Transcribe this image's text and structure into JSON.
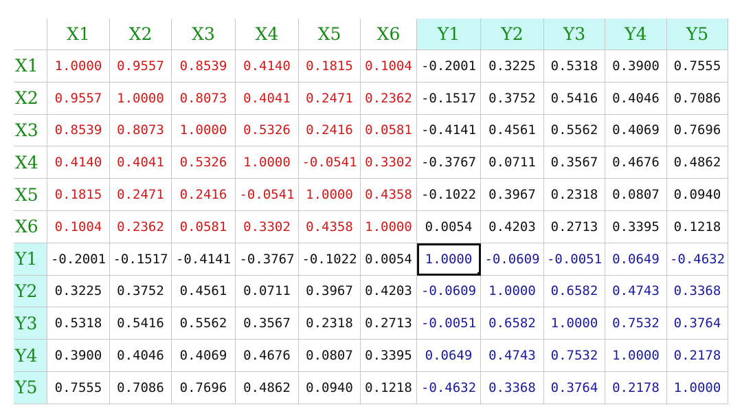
{
  "chart_data": {
    "type": "table",
    "columns": [
      "X1",
      "X2",
      "X3",
      "X4",
      "X5",
      "X6",
      "Y1",
      "Y2",
      "Y3",
      "Y4",
      "Y5"
    ],
    "rows": [
      "X1",
      "X2",
      "X3",
      "X4",
      "X5",
      "X6",
      "Y1",
      "Y2",
      "Y3",
      "Y4",
      "Y5"
    ],
    "values": [
      [
        "1.0000",
        "0.9557",
        "0.8539",
        "0.4140",
        "0.1815",
        "0.1004",
        "-0.2001",
        "0.3225",
        "0.5318",
        "0.3900",
        "0.7555"
      ],
      [
        "0.9557",
        "1.0000",
        "0.8073",
        "0.4041",
        "0.2471",
        "0.2362",
        "-0.1517",
        "0.3752",
        "0.5416",
        "0.4046",
        "0.7086"
      ],
      [
        "0.8539",
        "0.8073",
        "1.0000",
        "0.5326",
        "0.2416",
        "0.0581",
        "-0.4141",
        "0.4561",
        "0.5562",
        "0.4069",
        "0.7696"
      ],
      [
        "0.4140",
        "0.4041",
        "0.5326",
        "1.0000",
        "-0.0541",
        "0.3302",
        "-0.3767",
        "0.0711",
        "0.3567",
        "0.4676",
        "0.4862"
      ],
      [
        "0.1815",
        "0.2471",
        "0.2416",
        "-0.0541",
        "1.0000",
        "0.4358",
        "-0.1022",
        "0.3967",
        "0.2318",
        "0.0807",
        "0.0940"
      ],
      [
        "0.1004",
        "0.2362",
        "0.0581",
        "0.3302",
        "0.4358",
        "1.0000",
        "0.0054",
        "0.4203",
        "0.2713",
        "0.3395",
        "0.1218"
      ],
      [
        "-0.2001",
        "-0.1517",
        "-0.4141",
        "-0.3767",
        "-0.1022",
        "0.0054",
        "1.0000",
        "-0.0609",
        "-0.0051",
        "0.0649",
        "-0.4632"
      ],
      [
        "0.3225",
        "0.3752",
        "0.4561",
        "0.0711",
        "0.3967",
        "0.4203",
        "-0.0609",
        "1.0000",
        "0.6582",
        "0.4743",
        "0.3368"
      ],
      [
        "0.5318",
        "0.5416",
        "0.5562",
        "0.3567",
        "0.2318",
        "0.2713",
        "-0.0051",
        "0.6582",
        "1.0000",
        "0.7532",
        "0.3764"
      ],
      [
        "0.3900",
        "0.4046",
        "0.4069",
        "0.4676",
        "0.0807",
        "0.3395",
        "0.0649",
        "0.4743",
        "0.7532",
        "1.0000",
        "0.2178"
      ],
      [
        "0.7555",
        "0.7086",
        "0.7696",
        "0.4862",
        "0.0940",
        "0.1218",
        "-0.4632",
        "0.3368",
        "0.3764",
        "0.2178",
        "1.0000"
      ]
    ],
    "selected_cell": {
      "row": "Y1",
      "column": "Y1"
    },
    "colors": {
      "header_text": "#178a17",
      "y_header_bg": "#ccf7f7",
      "x_block_values": "#d41717",
      "y_block_values": "#1a1a9c",
      "cross_values": "#111111",
      "grid_lines": "#c7c7c7"
    }
  }
}
